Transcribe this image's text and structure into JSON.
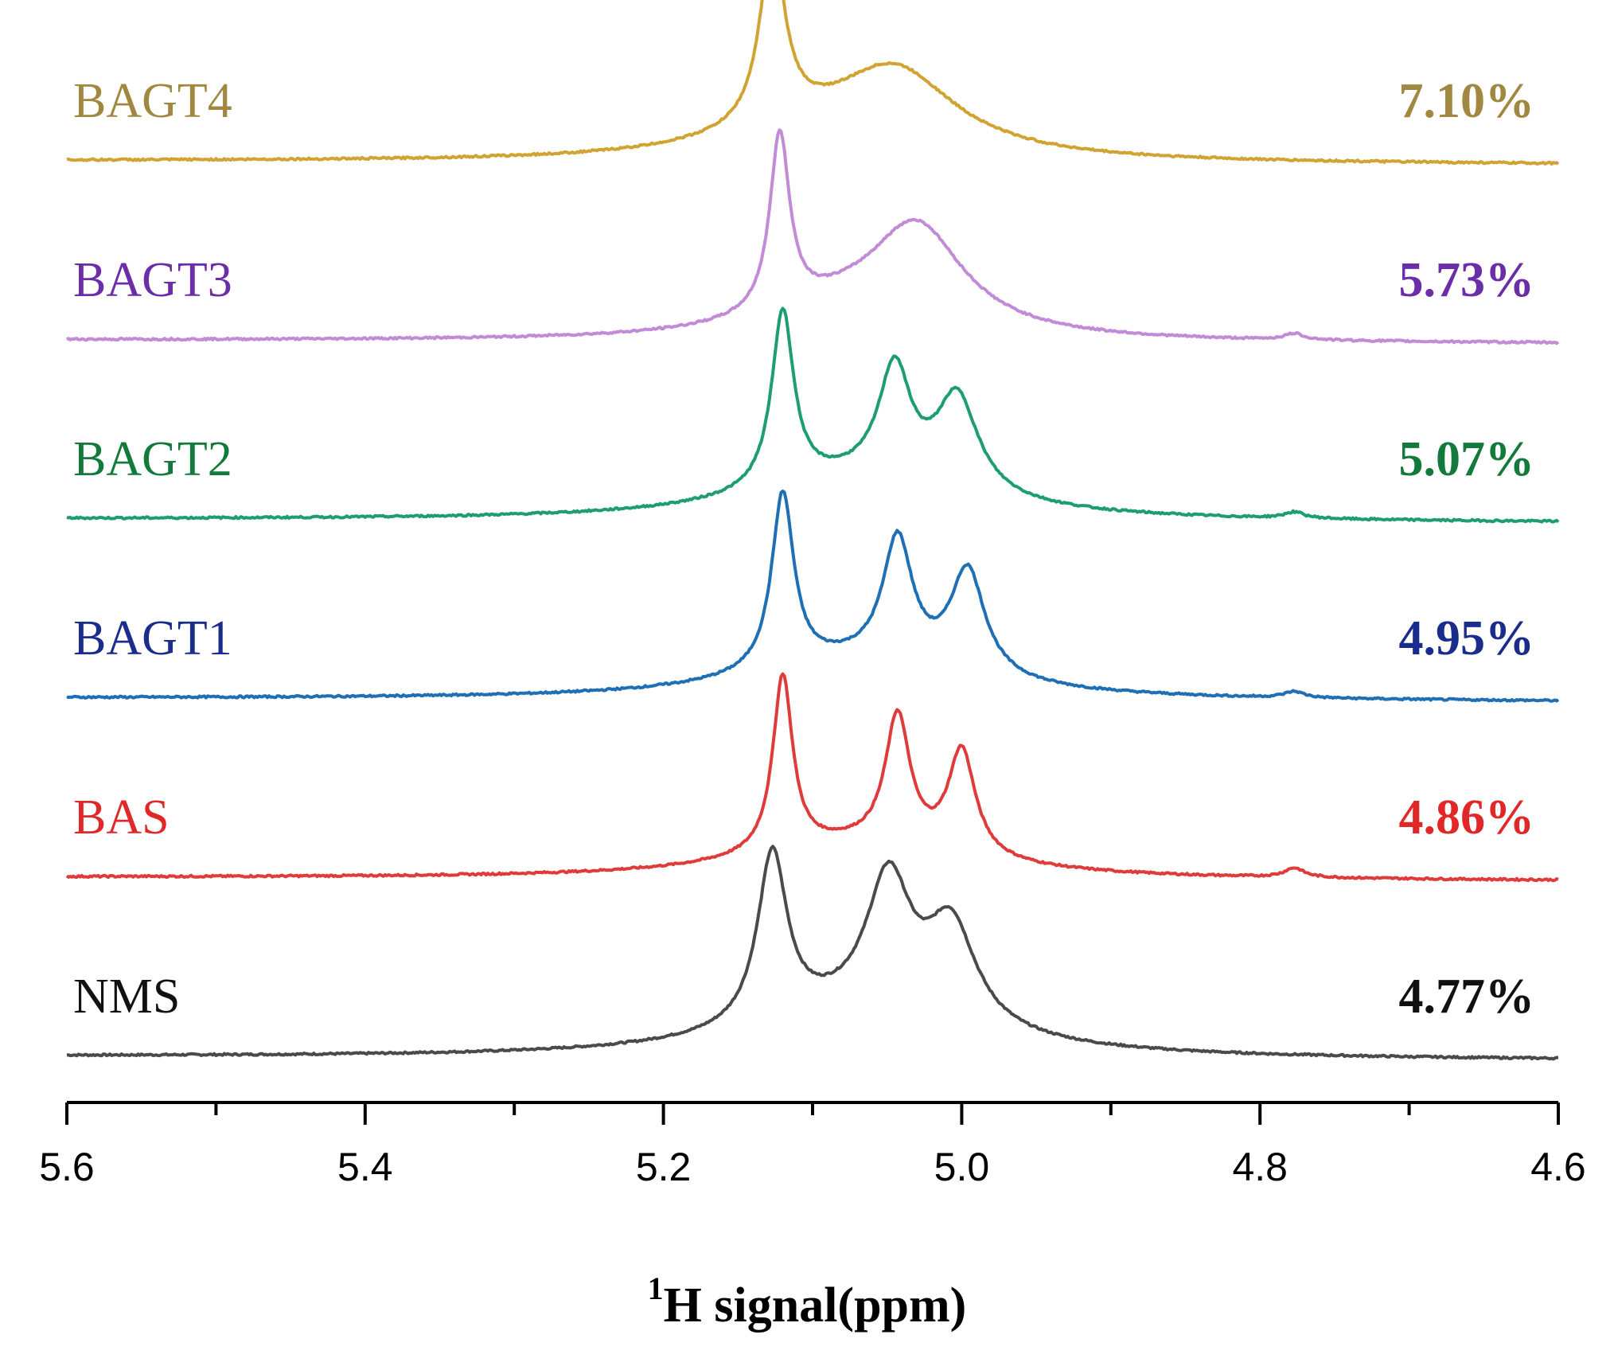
{
  "chart_data": {
    "type": "line",
    "title": "",
    "xlabel_sup": "1",
    "xlabel": "H signal(ppm)",
    "ylabel": "",
    "xlim": [
      5.6,
      4.6
    ],
    "x_reversed": true,
    "xticks": [
      5.6,
      5.4,
      5.2,
      5.0,
      4.8,
      4.6
    ],
    "xtick_labels": [
      "5.6",
      "5.4",
      "5.2",
      "5.0",
      "4.8",
      "4.6"
    ],
    "peak_shift_ppm": [
      5.125,
      5.045,
      5.005
    ],
    "series": [
      {
        "name": "NMS",
        "value_label": "4.77%",
        "color": "#4a4a4a",
        "label_color": "#111111",
        "baseline": 0.0,
        "wide_shift": 5.06,
        "wide_height": 0.0,
        "peaks": [
          {
            "center": 5.127,
            "height": 0.55,
            "width": 0.012
          },
          {
            "center": 5.049,
            "height": 0.43,
            "width": 0.018
          },
          {
            "center": 5.007,
            "height": 0.32,
            "width": 0.02
          },
          {
            "center": 5.07,
            "height": 0.14,
            "width": 0.09
          }
        ]
      },
      {
        "name": "BAS",
        "value_label": "4.86%",
        "color": "#e03b3b",
        "label_color": "#e02828",
        "baseline": 1.0,
        "peaks": [
          {
            "center": 5.12,
            "height": 0.57,
            "width": 0.008
          },
          {
            "center": 5.043,
            "height": 0.42,
            "width": 0.01
          },
          {
            "center": 5.0,
            "height": 0.34,
            "width": 0.011
          },
          {
            "center": 5.07,
            "height": 0.11,
            "width": 0.09
          },
          {
            "center": 4.777,
            "height": 0.03,
            "width": 0.008
          }
        ]
      },
      {
        "name": "BAGT1",
        "value_label": "4.95%",
        "color": "#1f6fb5",
        "label_color": "#1a2d8c",
        "baseline": 2.0,
        "peaks": [
          {
            "center": 5.12,
            "height": 0.57,
            "width": 0.009
          },
          {
            "center": 5.043,
            "height": 0.4,
            "width": 0.012
          },
          {
            "center": 4.996,
            "height": 0.34,
            "width": 0.014
          },
          {
            "center": 5.07,
            "height": 0.12,
            "width": 0.09
          },
          {
            "center": 4.777,
            "height": 0.02,
            "width": 0.008
          }
        ]
      },
      {
        "name": "BAGT2",
        "value_label": "5.07%",
        "color": "#1e9e6e",
        "label_color": "#137a3c",
        "baseline": 3.0,
        "peaks": [
          {
            "center": 5.12,
            "height": 0.57,
            "width": 0.009
          },
          {
            "center": 5.045,
            "height": 0.36,
            "width": 0.013
          },
          {
            "center": 5.003,
            "height": 0.31,
            "width": 0.017
          },
          {
            "center": 5.07,
            "height": 0.13,
            "width": 0.09
          },
          {
            "center": 4.777,
            "height": 0.02,
            "width": 0.008
          }
        ]
      },
      {
        "name": "BAGT3",
        "value_label": "5.73%",
        "color": "#c28bd6",
        "label_color": "#6b2ea8",
        "baseline": 4.0,
        "peaks": [
          {
            "center": 5.122,
            "height": 0.57,
            "width": 0.008
          },
          {
            "center": 5.03,
            "height": 0.33,
            "width": 0.038
          },
          {
            "center": 5.08,
            "height": 0.09,
            "width": 0.07
          },
          {
            "center": 4.777,
            "height": 0.02,
            "width": 0.008
          }
        ]
      },
      {
        "name": "BAGT4",
        "value_label": "7.10%",
        "color": "#d1a333",
        "label_color": "#a08840",
        "baseline": 5.0,
        "peaks": [
          {
            "center": 5.127,
            "height": 0.58,
            "width": 0.01
          },
          {
            "center": 5.045,
            "height": 0.27,
            "width": 0.05
          },
          {
            "center": 5.11,
            "height": 0.07,
            "width": 0.08
          }
        ]
      }
    ]
  }
}
